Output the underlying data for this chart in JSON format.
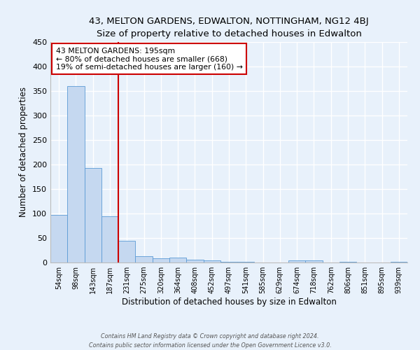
{
  "title": "43, MELTON GARDENS, EDWALTON, NOTTINGHAM, NG12 4BJ",
  "subtitle": "Size of property relative to detached houses in Edwalton",
  "xlabel": "Distribution of detached houses by size in Edwalton",
  "ylabel": "Number of detached properties",
  "bar_labels": [
    "54sqm",
    "98sqm",
    "143sqm",
    "187sqm",
    "231sqm",
    "275sqm",
    "320sqm",
    "364sqm",
    "408sqm",
    "452sqm",
    "497sqm",
    "541sqm",
    "585sqm",
    "629sqm",
    "674sqm",
    "718sqm",
    "762sqm",
    "806sqm",
    "851sqm",
    "895sqm",
    "939sqm"
  ],
  "bar_values": [
    97,
    360,
    193,
    95,
    45,
    13,
    9,
    10,
    6,
    4,
    1,
    1,
    0,
    0,
    4,
    4,
    0,
    1,
    0,
    0,
    2
  ],
  "bar_color": "#c5d8f0",
  "bar_edge_color": "#5b9bd5",
  "vline_x": 3.5,
  "vline_color": "#cc0000",
  "annotation_title": "43 MELTON GARDENS: 195sqm",
  "annotation_line1": "← 80% of detached houses are smaller (668)",
  "annotation_line2": "19% of semi-detached houses are larger (160) →",
  "annotation_box_color": "#cc0000",
  "ylim": [
    0,
    450
  ],
  "yticks": [
    0,
    50,
    100,
    150,
    200,
    250,
    300,
    350,
    400,
    450
  ],
  "footer1": "Contains HM Land Registry data © Crown copyright and database right 2024.",
  "footer2": "Contains public sector information licensed under the Open Government Licence v3.0.",
  "bg_color": "#e8f1fb",
  "plot_bg_color": "#e8f1fb"
}
